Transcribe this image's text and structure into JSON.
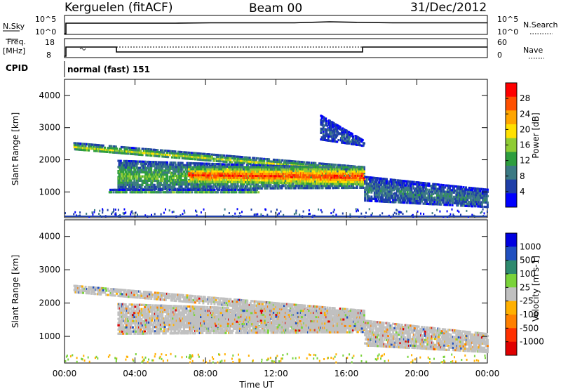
{
  "header": {
    "station": "Kerguelen (fitACF)",
    "beam": "Beam 00",
    "date": "31/Dec/2012"
  },
  "nsky_panel": {
    "left_label": "N.Sky",
    "right_label": "N.Search",
    "left_ticks": [
      "10^5",
      "10^0"
    ],
    "right_ticks": [
      "10^5",
      "10^0"
    ]
  },
  "freq_panel": {
    "left_label_1": "Freq.",
    "left_label_2": "[MHz]",
    "left_ticks": [
      "18",
      "8"
    ],
    "right_ticks": [
      "60",
      "0"
    ],
    "right_label": "Nave"
  },
  "cpid": {
    "label": "CPID",
    "text": "normal (fast) 151"
  },
  "colors": {
    "power": [
      "#0000ff",
      "#1f3fa8",
      "#3c7a84",
      "#2e9e3e",
      "#8fcc33",
      "#ffe000",
      "#ffa500",
      "#ff5000",
      "#ff0000"
    ],
    "velocity": [
      "#0000e0",
      "#2050c0",
      "#2e8a6e",
      "#7ad33a",
      "#c0c0c0",
      "#ffb000",
      "#ff8000",
      "#ff3000",
      "#e00000"
    ]
  },
  "chart_data": [
    {
      "type": "heatmap",
      "name_key": "power",
      "ylabel": "Slant Range [km]",
      "xlabel": "",
      "x_ticks": [
        "00:00",
        "04:00",
        "08:00",
        "12:00",
        "16:00",
        "20:00",
        "00:00"
      ],
      "y_ticks": [
        "1000",
        "2000",
        "3000",
        "4000"
      ],
      "ylim": [
        200,
        4500
      ],
      "xlim": [
        0,
        24
      ],
      "colorbar": {
        "label": "Power [dB]",
        "ticks": [
          "4",
          "8",
          "12",
          "16",
          "20",
          "24",
          "28"
        ],
        "range": [
          0,
          32
        ]
      },
      "bands": [
        {
          "x": [
            0.5,
            17
          ],
          "y0": [
            2550,
            1800
          ],
          "y1": [
            2300,
            1550
          ],
          "value": 14
        },
        {
          "x": [
            3,
            17
          ],
          "y0": [
            2000,
            1750
          ],
          "y1": [
            1050,
            1100
          ],
          "value": 12
        },
        {
          "x": [
            7,
            17
          ],
          "y0": [
            1800,
            1800
          ],
          "y1": [
            1300,
            1200
          ],
          "value": 24
        },
        {
          "x": [
            2.5,
            11
          ],
          "y0": [
            1100,
            1100
          ],
          "y1": [
            950,
            950
          ],
          "value": 10
        },
        {
          "x": [
            17,
            24
          ],
          "y0": [
            1500,
            1100
          ],
          "y1": [
            700,
            500
          ],
          "value": 8
        },
        {
          "x": [
            14.5,
            17
          ],
          "y0": [
            3400,
            2600
          ],
          "y1": [
            2600,
            2400
          ],
          "value": 6
        }
      ]
    },
    {
      "type": "heatmap",
      "name_key": "velocity",
      "ylabel": "Slant Range [km]",
      "xlabel": "Time UT",
      "x_ticks": [
        "00:00",
        "04:00",
        "08:00",
        "12:00",
        "16:00",
        "20:00",
        "00:00"
      ],
      "y_ticks": [
        "1000",
        "2000",
        "3000",
        "4000"
      ],
      "ylim": [
        200,
        4500
      ],
      "xlim": [
        0,
        24
      ],
      "colorbar": {
        "label": "Velocity [m s-1]",
        "ticks": [
          "1000",
          "500",
          "100",
          "25",
          "-25",
          "-100",
          "-500",
          "-1000"
        ],
        "range": [
          -1000,
          1000
        ]
      },
      "bands": [
        {
          "x": [
            0.5,
            17
          ],
          "y0": [
            2550,
            1800
          ],
          "y1": [
            2300,
            1550
          ],
          "value": 0
        },
        {
          "x": [
            3,
            17
          ],
          "y0": [
            2000,
            1750
          ],
          "y1": [
            1050,
            1100
          ],
          "value": 0
        },
        {
          "x": [
            7,
            17
          ],
          "y0": [
            1800,
            1800
          ],
          "y1": [
            1300,
            1200
          ],
          "value": 0
        },
        {
          "x": [
            17,
            24
          ],
          "y0": [
            1500,
            1100
          ],
          "y1": [
            700,
            500
          ],
          "value": 0
        }
      ]
    }
  ]
}
